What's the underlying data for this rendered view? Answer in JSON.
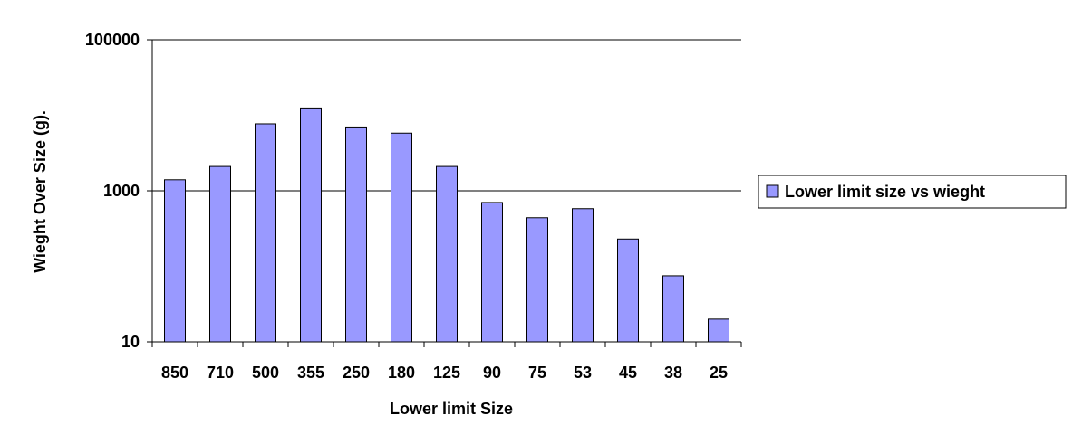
{
  "chart_data": {
    "type": "bar",
    "title": "",
    "xlabel": "Lower limit Size",
    "ylabel": "Wieght Over Size (g).",
    "yscale": "log",
    "ylim": [
      10,
      100000
    ],
    "yticks": [
      10,
      1000,
      100000
    ],
    "ytick_labels": [
      "10",
      "1000",
      "100000"
    ],
    "grid": "horizontal major",
    "legend_position": "right",
    "categories": [
      "850",
      "710",
      "500",
      "355",
      "250",
      "180",
      "125",
      "90",
      "75",
      "53",
      "45",
      "38",
      "25"
    ],
    "series": [
      {
        "name": "Lower limit size vs wieght",
        "values": [
          1400,
          2100,
          7700,
          12500,
          7000,
          5800,
          2100,
          700,
          440,
          580,
          230,
          75,
          20
        ]
      }
    ],
    "colors": {
      "bar_fill": "#9999ff",
      "bar_stroke": "#000000",
      "gridline": "#000000",
      "background": "#ffffff"
    }
  }
}
